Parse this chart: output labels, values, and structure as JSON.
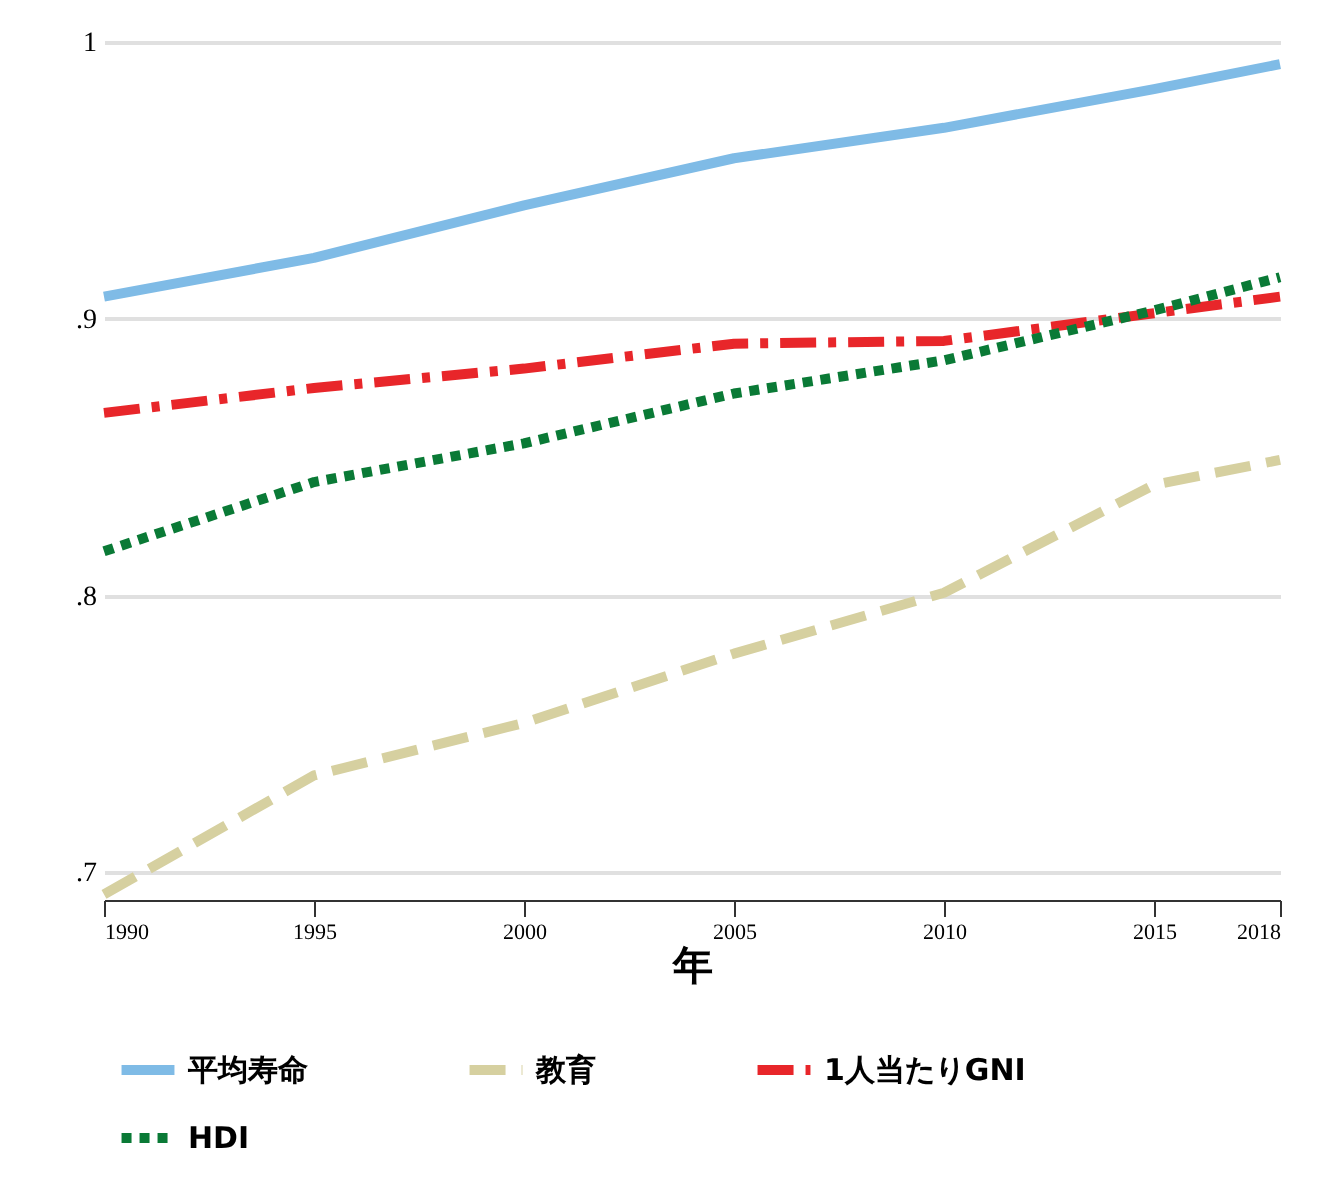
{
  "chart_data": {
    "type": "line",
    "xlabel": "年",
    "x": [
      1990,
      1995,
      2000,
      2005,
      2010,
      2015,
      2018
    ],
    "series": [
      {
        "name": "平均寿命",
        "color": "#7fbbe6",
        "line_style": "solid",
        "values": [
          0.908,
          0.922,
          0.941,
          0.958,
          0.969,
          0.983,
          0.992
        ]
      },
      {
        "name": "教育",
        "color": "#d6d0a0",
        "line_style": "dashed",
        "values": [
          0.692,
          0.735,
          0.754,
          0.779,
          0.801,
          0.84,
          0.849
        ]
      },
      {
        "name": "1人当たりGNI",
        "color": "#e8262a",
        "line_style": "dashdot",
        "values": [
          0.866,
          0.875,
          0.882,
          0.891,
          0.892,
          0.902,
          0.908
        ]
      },
      {
        "name": "HDI",
        "color": "#0a7a36",
        "line_style": "dotted",
        "values": [
          0.816,
          0.841,
          0.855,
          0.873,
          0.885,
          0.903,
          0.915
        ]
      }
    ],
    "xlim": [
      1990,
      2018
    ],
    "xticks": [
      1990,
      1995,
      2000,
      2005,
      2010,
      2015,
      2018
    ],
    "ylim": [
      0.69,
      1
    ],
    "yticks": [
      {
        "value": 0.7,
        "label": ".7"
      },
      {
        "value": 0.8,
        "label": ".8"
      },
      {
        "value": 0.9,
        "label": ".9"
      },
      {
        "value": 1,
        "label": "1"
      }
    ],
    "grid": "y",
    "legend": "bottom",
    "marker": "none"
  }
}
